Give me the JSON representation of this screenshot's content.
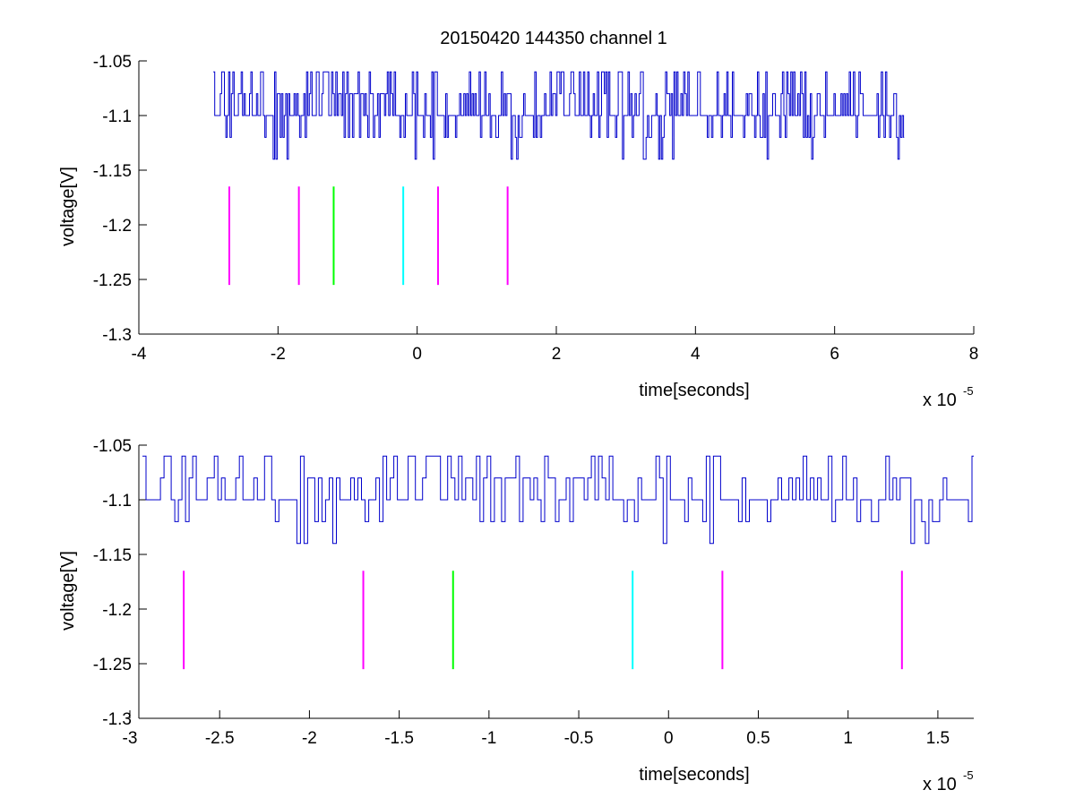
{
  "figure": {
    "title": "20150420 144350 channel 1"
  },
  "chart_data": [
    {
      "type": "line",
      "title": "20150420 144350 channel 1",
      "xlabel": "time[seconds]",
      "ylabel": "voltage[V]",
      "x_multiplier_label": "x 10",
      "x_multiplier_exponent": "-5",
      "xlim": [
        -4,
        8
      ],
      "ylim": [
        -1.3,
        -1.05
      ],
      "x_ticks": [
        -4,
        -2,
        0,
        2,
        4,
        6,
        8
      ],
      "x_tick_labels": [
        "-4",
        "-2",
        "0",
        "2",
        "4",
        "6",
        "8"
      ],
      "y_ticks": [
        -1.05,
        -1.1,
        -1.15,
        -1.2,
        -1.25,
        -1.3
      ],
      "y_tick_labels": [
        "-1.05",
        "-1.1",
        "-1.15",
        "-1.2",
        "-1.25",
        "-1.3"
      ],
      "grid": false,
      "signal": {
        "color": "#0000cc",
        "x_range": [
          -2.93,
          7.0
        ],
        "baseline": -1.1,
        "levels": [
          -1.06,
          -1.08,
          -1.1,
          -1.12,
          -1.14
        ]
      },
      "markers": {
        "y_range": [
          -1.255,
          -1.165
        ],
        "items": [
          {
            "x": -2.7,
            "color": "#ff00ff"
          },
          {
            "x": -1.7,
            "color": "#ff00ff"
          },
          {
            "x": -1.2,
            "color": "#00ff00"
          },
          {
            "x": -0.2,
            "color": "#00ffff"
          },
          {
            "x": 0.3,
            "color": "#ff00ff"
          },
          {
            "x": 1.3,
            "color": "#ff00ff"
          }
        ]
      }
    },
    {
      "type": "line",
      "title": "",
      "xlabel": "time[seconds]",
      "ylabel": "voltage[V]",
      "x_multiplier_label": "x 10",
      "x_multiplier_exponent": "-5",
      "xlim": [
        -2.95,
        1.7
      ],
      "ylim": [
        -1.3,
        -1.05
      ],
      "x_ticks": [
        -3,
        -2.5,
        -2,
        -1.5,
        -1,
        -0.5,
        0,
        0.5,
        1,
        1.5
      ],
      "x_tick_labels": [
        "-3",
        "-2.5",
        "-2",
        "-1.5",
        "-1",
        "-0.5",
        "0",
        "0.5",
        "1",
        "1.5"
      ],
      "y_ticks": [
        -1.05,
        -1.1,
        -1.15,
        -1.2,
        -1.25,
        -1.3
      ],
      "y_tick_labels": [
        "-1.05",
        "-1.1",
        "-1.15",
        "-1.2",
        "-1.25",
        "-1.3"
      ],
      "grid": false,
      "signal": {
        "color": "#0000cc",
        "x_range": [
          -2.93,
          1.7
        ],
        "baseline": -1.1,
        "levels": [
          -1.06,
          -1.08,
          -1.1,
          -1.12,
          -1.14
        ]
      },
      "markers": {
        "y_range": [
          -1.255,
          -1.165
        ],
        "items": [
          {
            "x": -2.7,
            "color": "#ff00ff"
          },
          {
            "x": -1.7,
            "color": "#ff00ff"
          },
          {
            "x": -1.2,
            "color": "#00ff00"
          },
          {
            "x": -0.2,
            "color": "#00ffff"
          },
          {
            "x": 0.3,
            "color": "#ff00ff"
          },
          {
            "x": 1.3,
            "color": "#ff00ff"
          }
        ]
      }
    }
  ]
}
